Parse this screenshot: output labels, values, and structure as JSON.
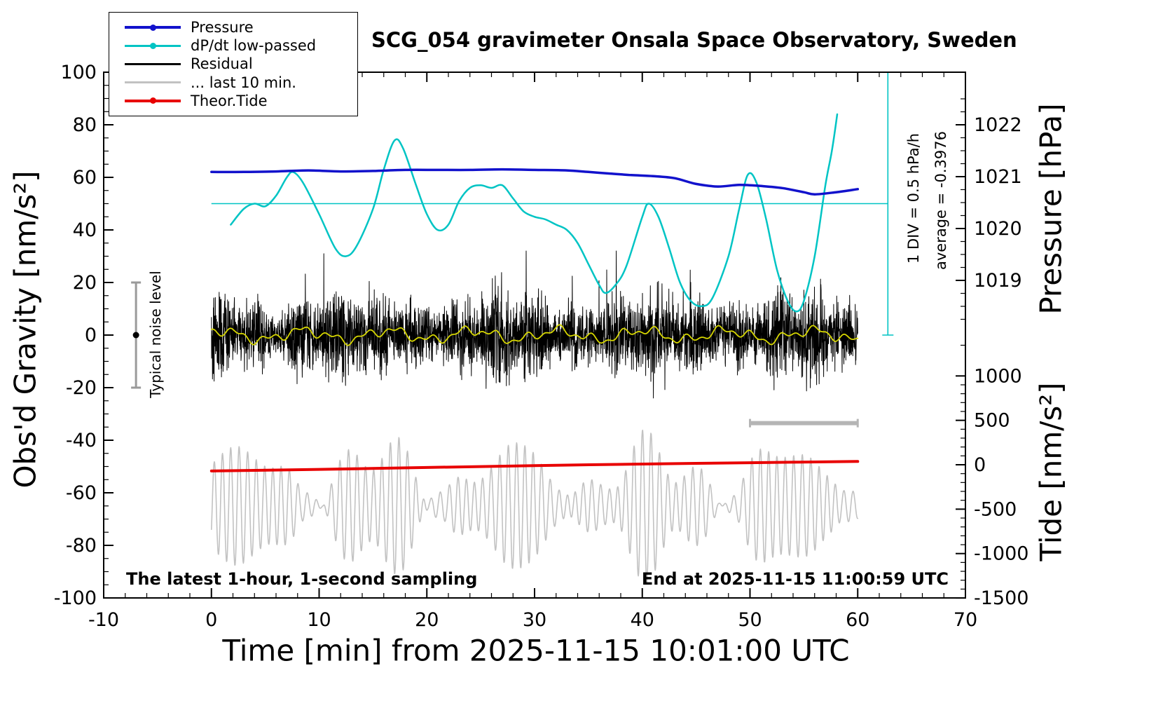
{
  "title": "SCG_054 gravimeter Onsala Space Observatory, Sweden",
  "annotations": {
    "sampling_note": "The latest 1-hour, 1-second sampling",
    "end_note": "End at 2025-11-15 11:00:59 UTC",
    "noise_label": "Typical noise level",
    "div_scale": "1 DIV = 0.5 hPa/h",
    "average": "average = -0.3976"
  },
  "legend": {
    "position": "top-left",
    "items": [
      {
        "label": "Pressure",
        "color": "#1212cc",
        "dot": true,
        "width": 4
      },
      {
        "label": "dP/dt low-passed",
        "color": "#00c4c4",
        "dot": true,
        "width": 2.5
      },
      {
        "label": "Residual",
        "color": "#000000",
        "dot": false,
        "width": 2.5
      },
      {
        "label": "... last 10 min.",
        "color": "#c2c2c2",
        "dot": false,
        "width": 2.5
      },
      {
        "label": "Theor.Tide",
        "color": "#e80000",
        "dot": true,
        "width": 4
      }
    ]
  },
  "axes": {
    "x": {
      "label": "Time [min] from 2025-11-15 10:01:00 UTC",
      "min": -10,
      "max": 70,
      "major_ticks": [
        -10,
        0,
        10,
        20,
        30,
        40,
        50,
        60,
        70
      ],
      "minor_step": 2
    },
    "y_left": {
      "label": "Obs'd Gravity [nm/s²]",
      "min": -100,
      "max": 100,
      "major_ticks": [
        -100,
        -80,
        -60,
        -40,
        -20,
        0,
        20,
        40,
        60,
        80,
        100
      ],
      "minor_step": 5
    },
    "y_right_pressure": {
      "label": "Pressure [hPa]",
      "major_ticks": [
        1022,
        1021,
        1020,
        1019
      ],
      "minor_step": 0.25
    },
    "y_right_tide": {
      "label": "Tide [nm/s²]",
      "major_ticks": [
        1000,
        500,
        0,
        -500,
        -1000,
        -1500
      ],
      "minor_step": 100
    }
  },
  "chart_data": {
    "type": "line",
    "title": "SCG_054 gravimeter Onsala Space Observatory, Sweden",
    "xlabel": "Time [min] from 2025-11-15 10:01:00 UTC",
    "x_range": [
      -10,
      70
    ],
    "gravity_range": [
      -100,
      100
    ],
    "pressure_range_hPa": [
      1017.9,
      1022.9
    ],
    "tide_range": [
      -1500,
      1200
    ],
    "grid": false,
    "legend_position": "top-left",
    "series": [
      {
        "name": "... last 10 min.",
        "axis": "gravity",
        "color": "#c2c2c2",
        "width": 1.6,
        "type": "carrier",
        "seed": 7,
        "center": -65,
        "base_amp": 13,
        "amp_mod": [
          [
            9,
            0.5
          ],
          [
            5,
            1.13
          ]
        ],
        "period_min": 0.78,
        "ripple": [
          3,
          6.7
        ],
        "x_range": [
          0,
          60
        ],
        "samples_per_min": 30,
        "summary": "residual of the last 10 minutes, rescaled; oscillates around -65 with peaks -33 and troughs -92"
      },
      {
        "name": "Residual",
        "axis": "gravity",
        "color": "#000000",
        "width": 1,
        "type": "noise",
        "seed": 42,
        "std": 6.5,
        "spike_prob": 0.009,
        "spike_gain": 2.4,
        "clip": 32,
        "x_range": [
          0,
          60
        ],
        "samples_per_min": 60,
        "summary": "1-second residual noise band centered on 0, typical span ±15, extreme spikes ±30"
      },
      {
        "name": "Residual low-passed",
        "axis": "gravity",
        "color": "#d6d600",
        "width": 1.8,
        "type": "harmonics",
        "center": 0,
        "components": [
          [
            1.8,
            0.8,
            1.0
          ],
          [
            1.3,
            2.1,
            3.0
          ],
          [
            0.9,
            4.3,
            0.6
          ]
        ],
        "x_range": [
          0,
          60
        ],
        "summary": "smoothed residual wandering within about ±3 of zero"
      },
      {
        "name": "dP/dt low-passed",
        "axis": "gravity",
        "color": "#00c4c4",
        "width": 2.5,
        "type": "points",
        "points": [
          [
            1.8,
            42
          ],
          [
            3,
            48
          ],
          [
            4,
            50
          ],
          [
            5,
            49
          ],
          [
            6,
            53
          ],
          [
            7,
            60
          ],
          [
            7.6,
            62
          ],
          [
            8.5,
            58
          ],
          [
            10,
            46
          ],
          [
            11.5,
            33
          ],
          [
            12.5,
            30
          ],
          [
            13.5,
            34
          ],
          [
            15,
            48
          ],
          [
            16,
            63
          ],
          [
            17,
            74
          ],
          [
            17.8,
            71
          ],
          [
            19,
            57
          ],
          [
            20,
            46
          ],
          [
            21,
            40
          ],
          [
            22,
            42
          ],
          [
            23,
            51
          ],
          [
            24,
            56
          ],
          [
            25,
            57
          ],
          [
            26,
            56
          ],
          [
            27,
            57
          ],
          [
            28,
            52
          ],
          [
            29,
            47
          ],
          [
            30,
            45
          ],
          [
            31,
            44
          ],
          [
            32,
            42
          ],
          [
            33,
            40
          ],
          [
            34,
            35
          ],
          [
            35,
            27
          ],
          [
            36,
            19
          ],
          [
            36.6,
            16
          ],
          [
            37.5,
            19
          ],
          [
            38.5,
            26
          ],
          [
            40,
            45
          ],
          [
            40.6,
            50
          ],
          [
            41.5,
            45
          ],
          [
            42.5,
            33
          ],
          [
            43.5,
            20
          ],
          [
            44.5,
            13
          ],
          [
            45.5,
            11
          ],
          [
            46.5,
            14
          ],
          [
            48,
            30
          ],
          [
            49,
            48
          ],
          [
            49.8,
            61
          ],
          [
            50.6,
            58
          ],
          [
            51.5,
            44
          ],
          [
            52.5,
            25
          ],
          [
            53.5,
            13
          ],
          [
            54.3,
            9
          ],
          [
            55,
            13
          ],
          [
            56,
            30
          ],
          [
            57,
            57
          ],
          [
            57.6,
            70
          ],
          [
            58.1,
            84
          ]
        ],
        "average_reference_gravity": 50
      },
      {
        "name": "Pressure",
        "axis": "pressure_hPa",
        "color": "#1212cc",
        "width": 3.5,
        "type": "points",
        "points": [
          [
            0,
            1021.09
          ],
          [
            3,
            1021.09
          ],
          [
            6,
            1021.1
          ],
          [
            9,
            1021.12
          ],
          [
            12,
            1021.1
          ],
          [
            15,
            1021.11
          ],
          [
            18,
            1021.13
          ],
          [
            21,
            1021.13
          ],
          [
            24,
            1021.13
          ],
          [
            27,
            1021.14
          ],
          [
            30,
            1021.13
          ],
          [
            33,
            1021.12
          ],
          [
            35,
            1021.09
          ],
          [
            37,
            1021.06
          ],
          [
            39,
            1021.03
          ],
          [
            41,
            1021.01
          ],
          [
            43,
            1020.97
          ],
          [
            45,
            1020.86
          ],
          [
            47,
            1020.81
          ],
          [
            49,
            1020.84
          ],
          [
            51,
            1020.82
          ],
          [
            53,
            1020.78
          ],
          [
            55,
            1020.7
          ],
          [
            56,
            1020.66
          ],
          [
            58,
            1020.7
          ],
          [
            60,
            1020.76
          ]
        ]
      },
      {
        "name": "Theor.Tide",
        "axis": "tide",
        "color": "#e80000",
        "width": 4,
        "type": "points",
        "points": [
          [
            0,
            -70
          ],
          [
            10,
            -52
          ],
          [
            20,
            -31
          ],
          [
            30,
            -10
          ],
          [
            40,
            8
          ],
          [
            50,
            23
          ],
          [
            60,
            37
          ]
        ]
      }
    ],
    "reference_marks": {
      "dpdt_average_line": {
        "gravity_y": 50,
        "x_from": 0,
        "x_to": 62.8,
        "color": "#00c4c4"
      },
      "div_scale_bar": {
        "x": 62.8,
        "gravity_top": 100,
        "gravity_bottom": 0,
        "color": "#00c4c4"
      },
      "noise_level_bar": {
        "x": -7,
        "gravity_low": -20,
        "gravity_high": 20,
        "color": "#9a9a9a"
      },
      "ten_min_width_bar": {
        "x_from": 50,
        "x_to": 60,
        "gravity_y": -33.5,
        "color": "#b5b5b5"
      }
    }
  }
}
